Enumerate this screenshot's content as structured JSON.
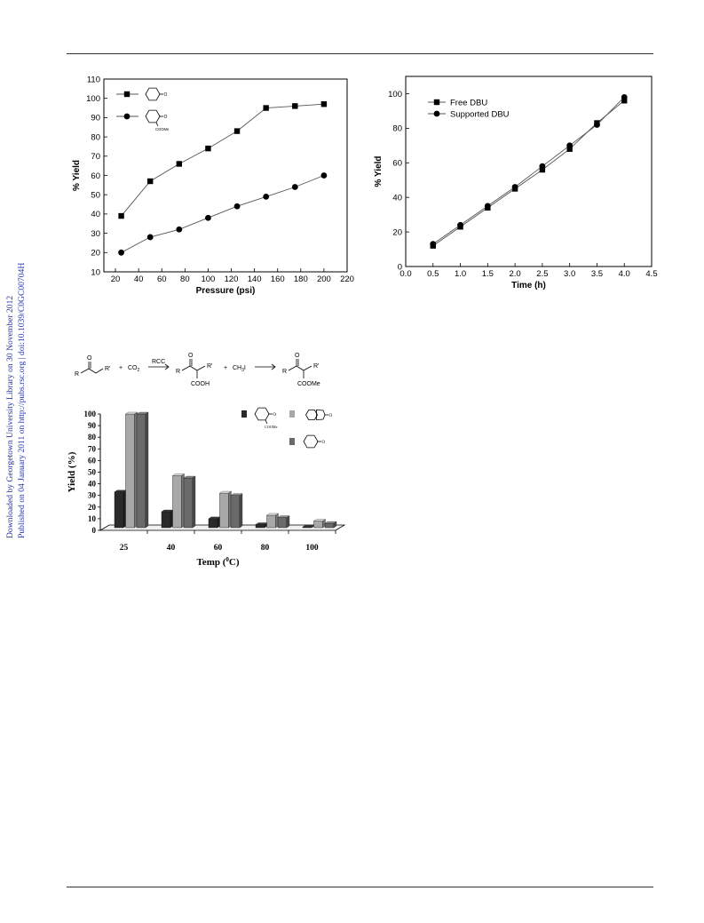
{
  "side_notes": {
    "line1": "Downloaded by Georgetown University Library on 30 November 2012",
    "line2": "Published on 04 January 2011 on http://pubs.rsc.org | doi:10.1039/C0GC00704H"
  },
  "scheme": {
    "r": "R",
    "rprime": "R'",
    "co2": "CO",
    "co2_sub": "2",
    "plus": "+",
    "rcc": "RCC",
    "cooh": "COOH",
    "ch3i": "CH",
    "ch3i_sub": "3",
    "ch3i_tail": "I",
    "coome": "COOMe",
    "o": "O"
  },
  "struct_labels": {
    "o": "O",
    "coome": "COOMe"
  },
  "chart_data": [
    {
      "type": "line",
      "xlabel": "Pressure (psi)",
      "ylabel": "% Yield",
      "xlim": [
        10,
        220
      ],
      "ylim": [
        10,
        110
      ],
      "xticks": [
        20,
        40,
        60,
        80,
        100,
        120,
        140,
        160,
        180,
        200,
        220
      ],
      "yticks": [
        10,
        20,
        30,
        40,
        50,
        60,
        70,
        80,
        90,
        100,
        110
      ],
      "legend_position": "top-left",
      "series": [
        {
          "marker": "square",
          "x": [
            25,
            50,
            75,
            100,
            125,
            150,
            175,
            200
          ],
          "values": [
            39,
            57,
            66,
            74,
            83,
            95,
            96,
            97
          ]
        },
        {
          "marker": "circle",
          "x": [
            25,
            50,
            75,
            100,
            125,
            150,
            175,
            200
          ],
          "values": [
            20,
            28,
            32,
            38,
            44,
            49,
            54,
            60
          ]
        }
      ]
    },
    {
      "type": "line",
      "xlabel": "Time (h)",
      "ylabel": "% Yield",
      "xlim": [
        0,
        4.5
      ],
      "ylim": [
        0,
        110
      ],
      "xticks": [
        "0.0",
        "0.5",
        "1.0",
        "1.5",
        "2.0",
        "2.5",
        "3.0",
        "3.5",
        "4.0",
        "4.5"
      ],
      "yticks": [
        0,
        20,
        40,
        60,
        80,
        100
      ],
      "legend_position": "top-left",
      "series": [
        {
          "name": "Free DBU",
          "marker": "square",
          "x": [
            0.5,
            1.0,
            1.5,
            2.0,
            2.5,
            3.0,
            3.5,
            4.0
          ],
          "values": [
            12,
            23,
            34,
            45,
            56,
            68,
            83,
            96
          ]
        },
        {
          "name": "Supported DBU",
          "marker": "circle",
          "x": [
            0.5,
            1.0,
            1.5,
            2.0,
            2.5,
            3.0,
            3.5,
            4.0
          ],
          "values": [
            13,
            24,
            35,
            46,
            58,
            70,
            82,
            98
          ]
        }
      ]
    },
    {
      "type": "bar",
      "xlabel": "Temp (",
      "xlabel_sup": "0",
      "xlabel_tail": "C)",
      "ylabel": "Yield (%)",
      "categories": [
        "25",
        "40",
        "60",
        "80",
        "100"
      ],
      "ylim": [
        0,
        100
      ],
      "yticks": [
        0,
        10,
        20,
        30,
        40,
        50,
        60,
        70,
        80,
        90,
        100
      ],
      "legend_position": "top-right",
      "colors": [
        "#2a2a2a",
        "#a8a8a8",
        "#6a6a6a"
      ],
      "series": [
        {
          "values": [
            33,
            16,
            10,
            5,
            3
          ]
        },
        {
          "values": [
            100,
            47,
            32,
            13,
            8
          ]
        },
        {
          "values": [
            100,
            45,
            30,
            11,
            6
          ]
        }
      ]
    }
  ]
}
